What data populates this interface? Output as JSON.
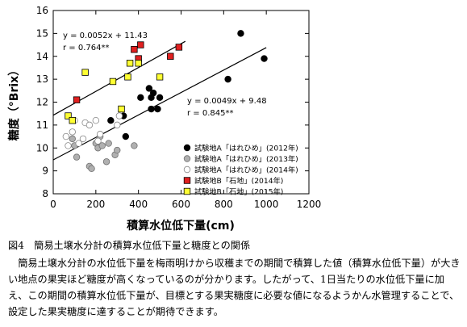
{
  "chart_data": {
    "type": "scatter",
    "ylabel": "糖度（°Brix）",
    "xlabel": "積算水位低下量(cm)",
    "xlim": [
      0,
      1200
    ],
    "ylim": [
      8,
      16
    ],
    "x_ticks": [
      "0",
      "200",
      "400",
      "600",
      "800",
      "1000",
      "1200"
    ],
    "y_ticks": [
      "8",
      "9",
      "10",
      "11",
      "12",
      "13",
      "14",
      "15",
      "16"
    ],
    "grid": false,
    "legend_position": "bottom-right",
    "series": [
      {
        "name": "試験地A「はれひめ」(2012年)",
        "marker": "circle",
        "fill": "#000000",
        "stroke": "#000000",
        "points": [
          [
            270,
            11.2
          ],
          [
            330,
            11.4
          ],
          [
            340,
            10.5
          ],
          [
            410,
            12.2
          ],
          [
            450,
            12.6
          ],
          [
            460,
            12.2
          ],
          [
            470,
            12.4
          ],
          [
            460,
            11.7
          ],
          [
            490,
            11.7
          ],
          [
            820,
            13.0
          ],
          [
            880,
            15.0
          ],
          [
            990,
            13.9
          ],
          [
            500,
            12.2
          ]
        ]
      },
      {
        "name": "試験地A「はれひめ」(2013年)",
        "marker": "circle",
        "fill": "#b0b0b0",
        "stroke": "#707070",
        "points": [
          [
            90,
            10.4
          ],
          [
            100,
            10.1
          ],
          [
            110,
            9.6
          ],
          [
            170,
            9.2
          ],
          [
            180,
            9.1
          ],
          [
            200,
            10.2
          ],
          [
            210,
            10.0
          ],
          [
            220,
            10.5
          ],
          [
            230,
            10.1
          ],
          [
            250,
            9.4
          ],
          [
            260,
            10.2
          ],
          [
            290,
            9.7
          ],
          [
            300,
            9.9
          ],
          [
            380,
            10.1
          ]
        ]
      },
      {
        "name": "試験地A「はれひめ」(2014年)",
        "marker": "circle",
        "fill": "#ffffff",
        "stroke": "#888888",
        "points": [
          [
            60,
            10.5
          ],
          [
            70,
            10.1
          ],
          [
            90,
            10.7
          ],
          [
            100,
            11.2
          ],
          [
            120,
            10.2
          ],
          [
            140,
            10.4
          ],
          [
            150,
            11.1
          ],
          [
            170,
            11.0
          ],
          [
            200,
            11.2
          ],
          [
            210,
            10.3
          ],
          [
            220,
            10.6
          ],
          [
            300,
            11.0
          ],
          [
            310,
            11.4
          ]
        ]
      },
      {
        "name": "試験地B「石地」(2014年)",
        "marker": "square",
        "fill": "#e02020",
        "stroke": "#000000",
        "points": [
          [
            110,
            12.1
          ],
          [
            380,
            14.3
          ],
          [
            400,
            13.9
          ],
          [
            410,
            14.5
          ],
          [
            550,
            14.0
          ],
          [
            590,
            14.4
          ]
        ]
      },
      {
        "name": "試験地B「石地」(2015年)",
        "marker": "square",
        "fill": "#ffff33",
        "stroke": "#000000",
        "points": [
          [
            70,
            11.4
          ],
          [
            90,
            11.2
          ],
          [
            150,
            13.3
          ],
          [
            280,
            12.9
          ],
          [
            320,
            11.7
          ],
          [
            350,
            13.1
          ],
          [
            360,
            13.7
          ],
          [
            400,
            13.7
          ],
          [
            500,
            13.1
          ]
        ]
      }
    ],
    "trendlines": [
      {
        "equation": "y = 0.0052x + 11.43",
        "r": "r = 0.764**",
        "slope": 0.0052,
        "intercept": 11.43,
        "x_from": 0,
        "x_to": 620
      },
      {
        "equation": "y = 0.0049x + 9.48",
        "r": "r = 0.845**",
        "slope": 0.0049,
        "intercept": 9.48,
        "x_from": 0,
        "x_to": 1000
      }
    ]
  },
  "caption": {
    "title": "図4　簡易土壌水分計の積算水位低下量と糖度との関係",
    "body": "簡易土壌水分計の水位低下量を梅雨明けから収穫までの期間で積算した値（積算水位低下量）が大きい地点の果実ほど糖度が高くなっているのが分かります。したがって、1日当たりの水位低下量に加え、この期間の積算水位低下量が、目標とする果実糖度に必要な値になるようかん水管理することで、設定した果実糖度に達することが期待できます。"
  }
}
